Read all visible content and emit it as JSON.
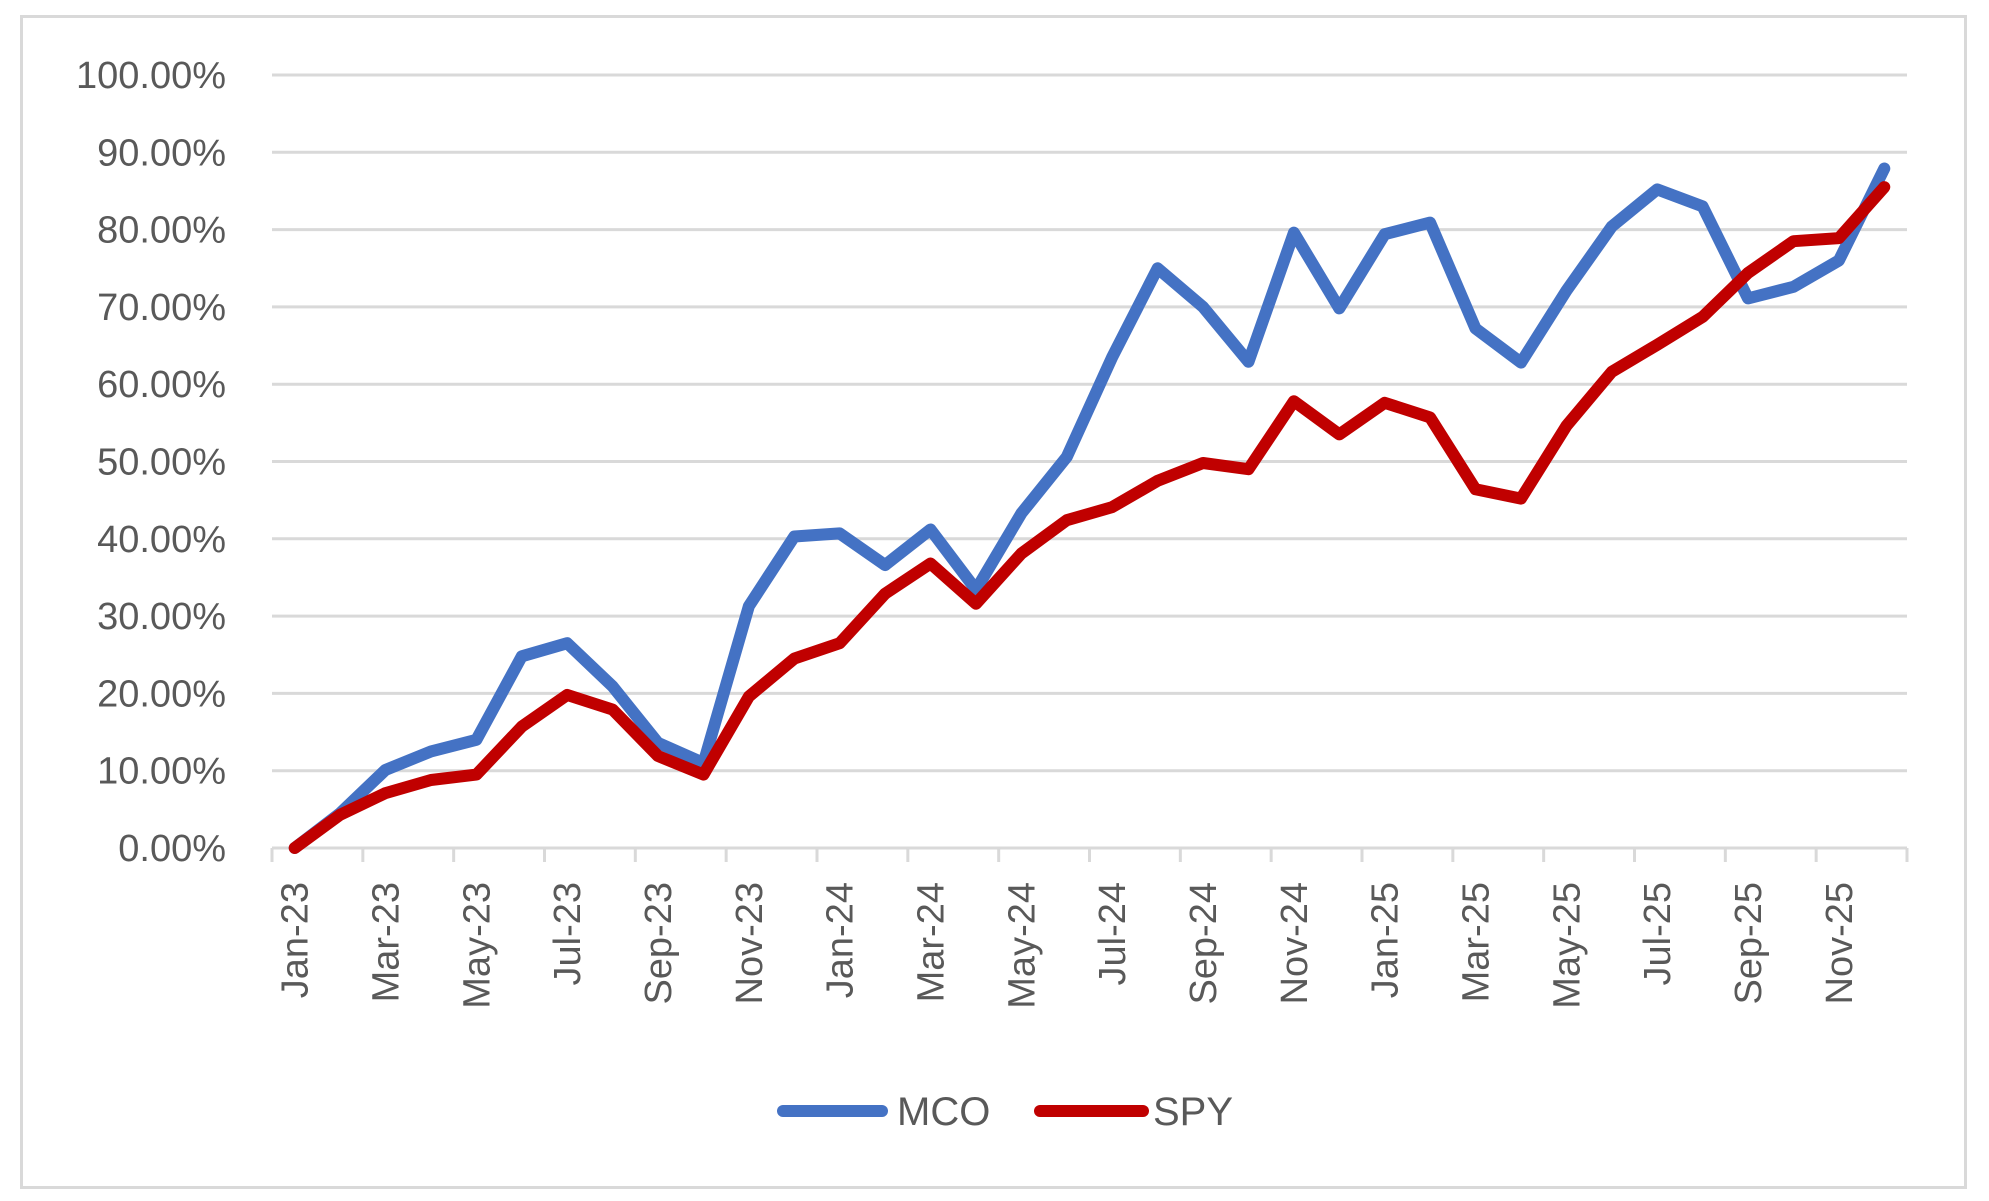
{
  "chart_data": {
    "type": "line",
    "title": "",
    "xlabel": "",
    "ylabel": "",
    "ylim": [
      0,
      1.0
    ],
    "y_ticks": [
      "0.00%",
      "10.00%",
      "20.00%",
      "30.00%",
      "40.00%",
      "50.00%",
      "60.00%",
      "70.00%",
      "80.00%",
      "90.00%",
      "100.00%"
    ],
    "grid": true,
    "legend_position": "bottom",
    "categories": [
      "Jan-23",
      "Feb-23",
      "Mar-23",
      "Apr-23",
      "May-23",
      "Jun-23",
      "Jul-23",
      "Aug-23",
      "Sep-23",
      "Oct-23",
      "Nov-23",
      "Dec-23",
      "Jan-24",
      "Feb-24",
      "Mar-24",
      "Apr-24",
      "May-24",
      "Jun-24",
      "Jul-24",
      "Aug-24",
      "Sep-24",
      "Oct-24",
      "Nov-24",
      "Dec-24",
      "Jan-25",
      "Feb-25",
      "Mar-25",
      "Apr-25",
      "May-25",
      "Jun-25",
      "Jul-25",
      "Aug-25",
      "Sep-25",
      "Oct-25",
      "Nov-25",
      "Dec-25"
    ],
    "x_tick_labels": [
      "Jan-23",
      "Mar-23",
      "May-23",
      "Jul-23",
      "Sep-23",
      "Nov-23",
      "Jan-24",
      "Mar-24",
      "May-24",
      "Jul-24",
      "Sep-24",
      "Nov-24",
      "Jan-25",
      "Mar-25",
      "May-25",
      "Jul-25",
      "Sep-25",
      "Nov-25"
    ],
    "series": [
      {
        "name": "MCO",
        "color": "#4472C4",
        "values": [
          0.0,
          0.045,
          0.101,
          0.125,
          0.14,
          0.248,
          0.265,
          0.209,
          0.136,
          0.11,
          0.313,
          0.403,
          0.407,
          0.366,
          0.412,
          0.334,
          0.433,
          0.506,
          0.635,
          0.75,
          0.7,
          0.629,
          0.796,
          0.698,
          0.794,
          0.809,
          0.672,
          0.628,
          0.721,
          0.804,
          0.852,
          0.83,
          0.711,
          0.726,
          0.76,
          0.879
        ]
      },
      {
        "name": "SPY",
        "color": "#C00000",
        "values": [
          0.0,
          0.043,
          0.071,
          0.088,
          0.095,
          0.157,
          0.198,
          0.179,
          0.119,
          0.095,
          0.196,
          0.245,
          0.265,
          0.329,
          0.368,
          0.316,
          0.381,
          0.424,
          0.441,
          0.475,
          0.498,
          0.49,
          0.578,
          0.535,
          0.576,
          0.557,
          0.464,
          0.452,
          0.546,
          0.616,
          0.651,
          0.687,
          0.744,
          0.785,
          0.789,
          0.855
        ]
      }
    ]
  },
  "legend": {
    "items": [
      {
        "label": "MCO",
        "color": "#4472C4"
      },
      {
        "label": "SPY",
        "color": "#C00000"
      }
    ]
  },
  "colors": {
    "gridline": "#d9d9d9",
    "axis_text": "#595959",
    "border": "#d9d9d9"
  }
}
